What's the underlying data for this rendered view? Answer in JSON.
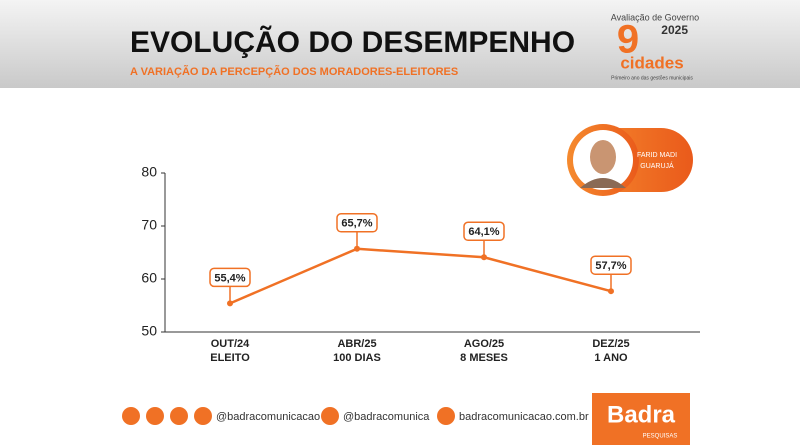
{
  "header": {
    "title": "EVOLUÇÃO DO DESEMPENHO",
    "subtitle": "A VARIAÇÃO DA PERCEPÇÃO DOS MORADORES-ELEITORES",
    "logo": {
      "label": "Avaliação de Governo",
      "year": "2025",
      "number": "9",
      "word": "cidades",
      "tagline": "Primeiro ano das gestões municipais"
    }
  },
  "badge": {
    "name": "FARID MADI",
    "city": "GUARUJÁ"
  },
  "chart_data": {
    "type": "line",
    "categories": [
      [
        "OUT/24",
        "ELEITO"
      ],
      [
        "ABR/25",
        "100 DIAS"
      ],
      [
        "AGO/25",
        "8 MESES"
      ],
      [
        "DEZ/25",
        "1 ANO"
      ]
    ],
    "values": [
      55.4,
      65.7,
      64.1,
      57.7
    ],
    "value_labels": [
      "55,4%",
      "65,7%",
      "64,1%",
      "57,7%"
    ],
    "color": "#f07125",
    "ylim": [
      50,
      80
    ],
    "yticks": [
      50,
      60,
      70,
      80
    ]
  },
  "footer": {
    "instagram": "@badracomunicacao",
    "x": "@badracomunica",
    "site": "badracomunicacao.com.br",
    "brand": "Badra",
    "brand_sub": "PESQUISAS"
  }
}
